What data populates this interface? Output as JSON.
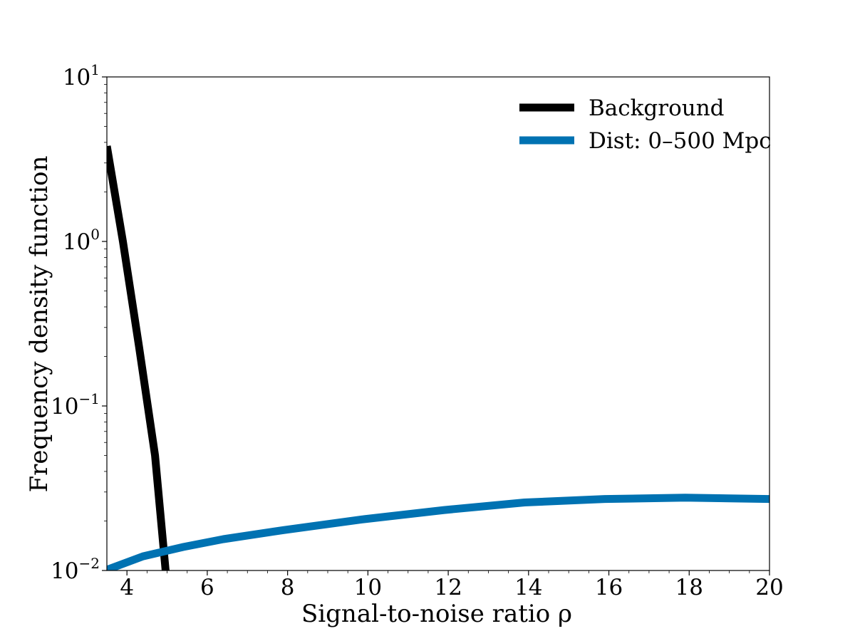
{
  "chart_data": {
    "type": "line",
    "title": "",
    "xlabel": "Signal-to-noise ratio ρ",
    "ylabel": "Frequency density function",
    "xlim": [
      3.5,
      20
    ],
    "ylim": [
      0.01,
      10
    ],
    "yscale": "log",
    "grid": false,
    "legend_position": "top-right",
    "x_ticks": [
      4,
      6,
      8,
      10,
      12,
      14,
      16,
      18,
      20
    ],
    "x_tick_labels": [
      "4",
      "6",
      "8",
      "10",
      "12",
      "14",
      "16",
      "18",
      "20"
    ],
    "y_ticks": [
      0.01,
      0.1,
      1,
      10
    ],
    "y_tick_labels": [
      {
        "base": "10",
        "exp": "−2"
      },
      {
        "base": "10",
        "exp": "−1"
      },
      {
        "base": "10",
        "exp": "0"
      },
      {
        "base": "10",
        "exp": "1"
      }
    ],
    "series": [
      {
        "name": "Background",
        "color": "#000000",
        "x": [
          3.5,
          3.9,
          4.3,
          4.7,
          5.0
        ],
        "y": [
          3.8,
          1.0,
          0.23,
          0.05,
          0.008
        ]
      },
      {
        "name": "Dist: 0–500 Mpc",
        "color": "#0072B2",
        "x": [
          3.5,
          4.4,
          5.4,
          6.4,
          7.9,
          9.9,
          11.9,
          13.9,
          15.9,
          17.9,
          20.0
        ],
        "y": [
          0.0101,
          0.0122,
          0.0139,
          0.0155,
          0.0176,
          0.0205,
          0.0233,
          0.0259,
          0.0272,
          0.0277,
          0.0272
        ]
      }
    ]
  }
}
